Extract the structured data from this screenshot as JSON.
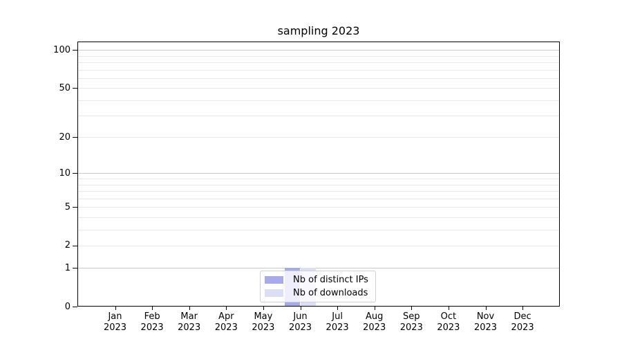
{
  "chart_data": {
    "type": "bar",
    "title": "sampling 2023",
    "categories": [
      "Jan",
      "Feb",
      "Mar",
      "Apr",
      "May",
      "Jun",
      "Jul",
      "Aug",
      "Sep",
      "Oct",
      "Nov",
      "Dec"
    ],
    "year_label": "2023",
    "series": [
      {
        "name": "Nb of distinct IPs",
        "color": "#a8aaee",
        "values": [
          0,
          0,
          0,
          0,
          0,
          1,
          0,
          0,
          0,
          0,
          0,
          0
        ]
      },
      {
        "name": "Nb of downloads",
        "color": "#dcddf7",
        "values": [
          0,
          0,
          0,
          0,
          0,
          1,
          0,
          0,
          0,
          0,
          0,
          0
        ]
      }
    ],
    "y_axis": {
      "scale": "log1p",
      "ticks": [
        0,
        1,
        2,
        5,
        10,
        20,
        50,
        100
      ],
      "decade_ticks": [
        1,
        10,
        100
      ],
      "minor_gridlines": [
        3,
        4,
        6,
        7,
        8,
        9,
        30,
        40,
        60,
        70,
        80,
        90
      ],
      "ylim": [
        0,
        116
      ]
    },
    "x_axis": {
      "tick_count": 12
    },
    "legend": {
      "position": "lower center",
      "entries": [
        "Nb of distinct IPs",
        "Nb of downloads"
      ]
    },
    "grid": true
  },
  "colors": {
    "grid_minor": "#e8e8e8",
    "grid_major": "#c8c8c8",
    "spine": "#000000",
    "legend_border": "#d0d0d0",
    "bar_distinct_ips": "#a8aaee",
    "bar_downloads": "#dcddf7"
  }
}
